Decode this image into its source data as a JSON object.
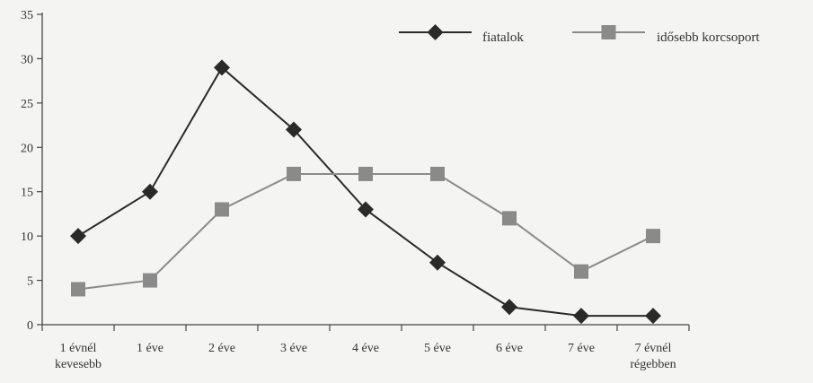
{
  "chart_data": {
    "type": "line",
    "title": "",
    "xlabel": "",
    "ylabel": "",
    "ylim": [
      0,
      35
    ],
    "yticks": [
      0,
      5,
      10,
      15,
      20,
      25,
      30,
      35
    ],
    "categories": [
      [
        "1 évnél",
        "kevesebb"
      ],
      [
        "1 éve"
      ],
      [
        "2 éve"
      ],
      [
        "3 éve"
      ],
      [
        "4 éve"
      ],
      [
        "5 éve"
      ],
      [
        "6 éve"
      ],
      [
        "7 éve"
      ],
      [
        "7 évnél",
        "régebben"
      ]
    ],
    "series": [
      {
        "name": "fiatalok",
        "marker": "diamond",
        "color": "#2a2a2a",
        "values": [
          10,
          15,
          29,
          22,
          13,
          7,
          2,
          1,
          1
        ]
      },
      {
        "name": "idősebb korcsoport",
        "marker": "square",
        "color": "#8a8a8a",
        "values": [
          4,
          5,
          13,
          17,
          17,
          17,
          12,
          6,
          10
        ]
      }
    ],
    "legend": "top-right",
    "grid": false
  }
}
